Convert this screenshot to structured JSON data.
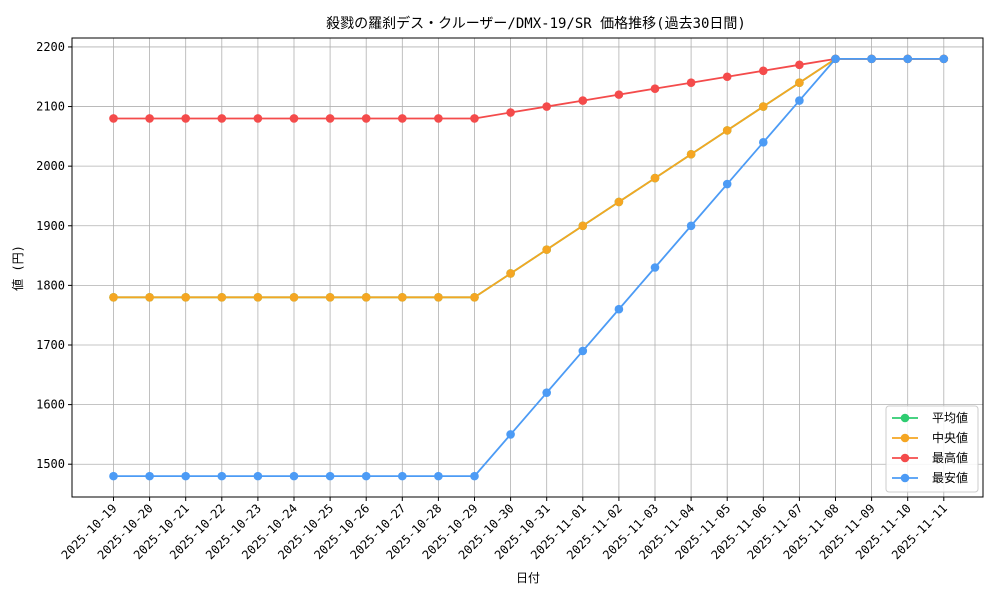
{
  "chart_data": {
    "type": "line",
    "title": "殺戮の羅刹デス・クルーザー/DMX-19/SR 価格推移(過去30日間)",
    "xlabel": "日付",
    "ylabel": "値 (円)",
    "ylim": [
      1445,
      2215
    ],
    "yticks": [
      1500,
      1600,
      1700,
      1800,
      1900,
      2000,
      2100,
      2200
    ],
    "grid": true,
    "legend_position": "lower-right",
    "categories": [
      "2025-10-19",
      "2025-10-20",
      "2025-10-21",
      "2025-10-22",
      "2025-10-23",
      "2025-10-24",
      "2025-10-25",
      "2025-10-26",
      "2025-10-27",
      "2025-10-28",
      "2025-10-29",
      "2025-10-30",
      "2025-10-31",
      "2025-11-01",
      "2025-11-02",
      "2025-11-03",
      "2025-11-04",
      "2025-11-05",
      "2025-11-06",
      "2025-11-07",
      "2025-11-08",
      "2025-11-09",
      "2025-11-10",
      "2025-11-11"
    ],
    "series": [
      {
        "name": "平均値",
        "color": "#2ecc71",
        "values": [
          1780,
          1780,
          1780,
          1780,
          1780,
          1780,
          1780,
          1780,
          1780,
          1780,
          1780,
          1820,
          1860,
          1900,
          1940,
          1980,
          2020,
          2060,
          2100,
          2140,
          2180,
          2180,
          2180,
          2180
        ]
      },
      {
        "name": "中央値",
        "color": "#f5a623",
        "values": [
          1780,
          1780,
          1780,
          1780,
          1780,
          1780,
          1780,
          1780,
          1780,
          1780,
          1780,
          1820,
          1860,
          1900,
          1940,
          1980,
          2020,
          2060,
          2100,
          2140,
          2180,
          2180,
          2180,
          2180
        ]
      },
      {
        "name": "最高値",
        "color": "#f44b4b",
        "values": [
          2080,
          2080,
          2080,
          2080,
          2080,
          2080,
          2080,
          2080,
          2080,
          2080,
          2080,
          2090,
          2100,
          2110,
          2120,
          2130,
          2140,
          2150,
          2160,
          2170,
          2180,
          2180,
          2180,
          2180
        ]
      },
      {
        "name": "最安値",
        "color": "#4c9bf5",
        "values": [
          1480,
          1480,
          1480,
          1480,
          1480,
          1480,
          1480,
          1480,
          1480,
          1480,
          1480,
          1550,
          1620,
          1690,
          1760,
          1830,
          1900,
          1970,
          2040,
          2110,
          2180,
          2180,
          2180,
          2180
        ]
      }
    ]
  }
}
